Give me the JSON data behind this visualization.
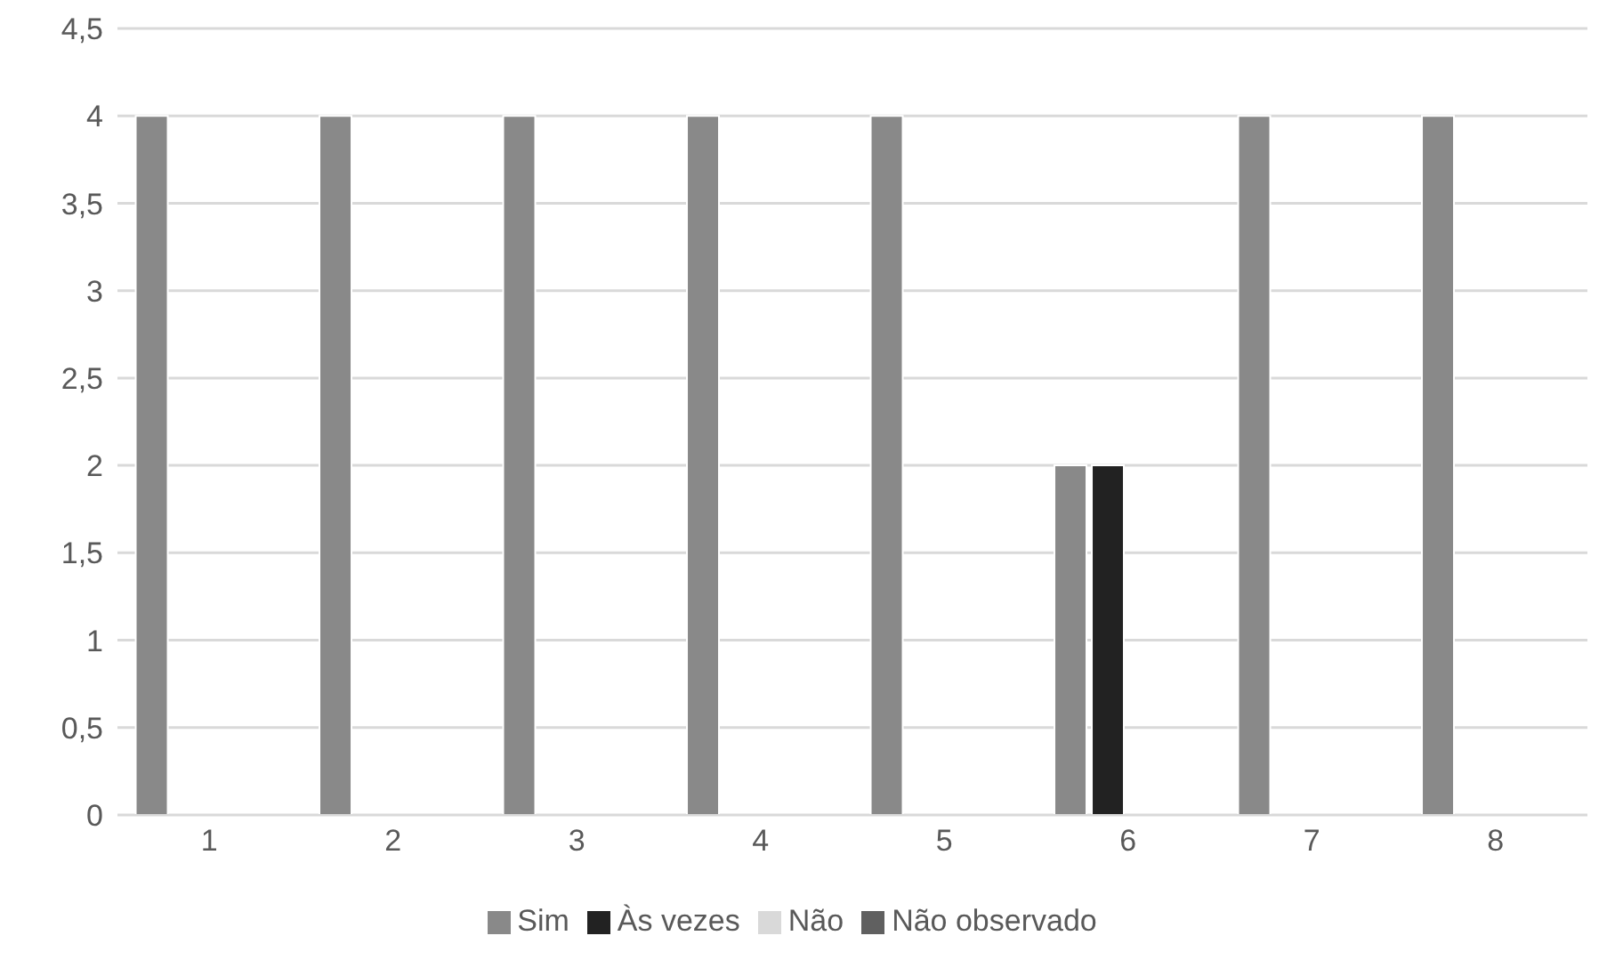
{
  "chart_data": {
    "type": "bar",
    "categories": [
      "1",
      "2",
      "3",
      "4",
      "5",
      "6",
      "7",
      "8"
    ],
    "series": [
      {
        "name": "Sim",
        "color": "#898989",
        "values": [
          4,
          4,
          4,
          4,
          4,
          2,
          4,
          4
        ]
      },
      {
        "name": "Às vezes",
        "color": "#222222",
        "values": [
          0,
          0,
          0,
          0,
          0,
          2,
          0,
          0
        ]
      },
      {
        "name": "Não",
        "color": "#d9d9d9",
        "values": [
          0,
          0,
          0,
          0,
          0,
          0,
          0,
          0
        ]
      },
      {
        "name": "Não observado",
        "color": "#606060",
        "values": [
          0,
          0,
          0,
          0,
          0,
          0,
          0,
          0
        ]
      }
    ],
    "ylim": [
      0,
      4.5
    ],
    "yticks": [
      {
        "value": 0,
        "label": "0"
      },
      {
        "value": 0.5,
        "label": "0,5"
      },
      {
        "value": 1,
        "label": "1"
      },
      {
        "value": 1.5,
        "label": "1,5"
      },
      {
        "value": 2,
        "label": "2"
      },
      {
        "value": 2.5,
        "label": "2,5"
      },
      {
        "value": 3,
        "label": "3"
      },
      {
        "value": 3.5,
        "label": "3,5"
      },
      {
        "value": 4,
        "label": "4"
      },
      {
        "value": 4.5,
        "label": "4,5"
      }
    ],
    "grid": "y",
    "legend": "bottom"
  }
}
